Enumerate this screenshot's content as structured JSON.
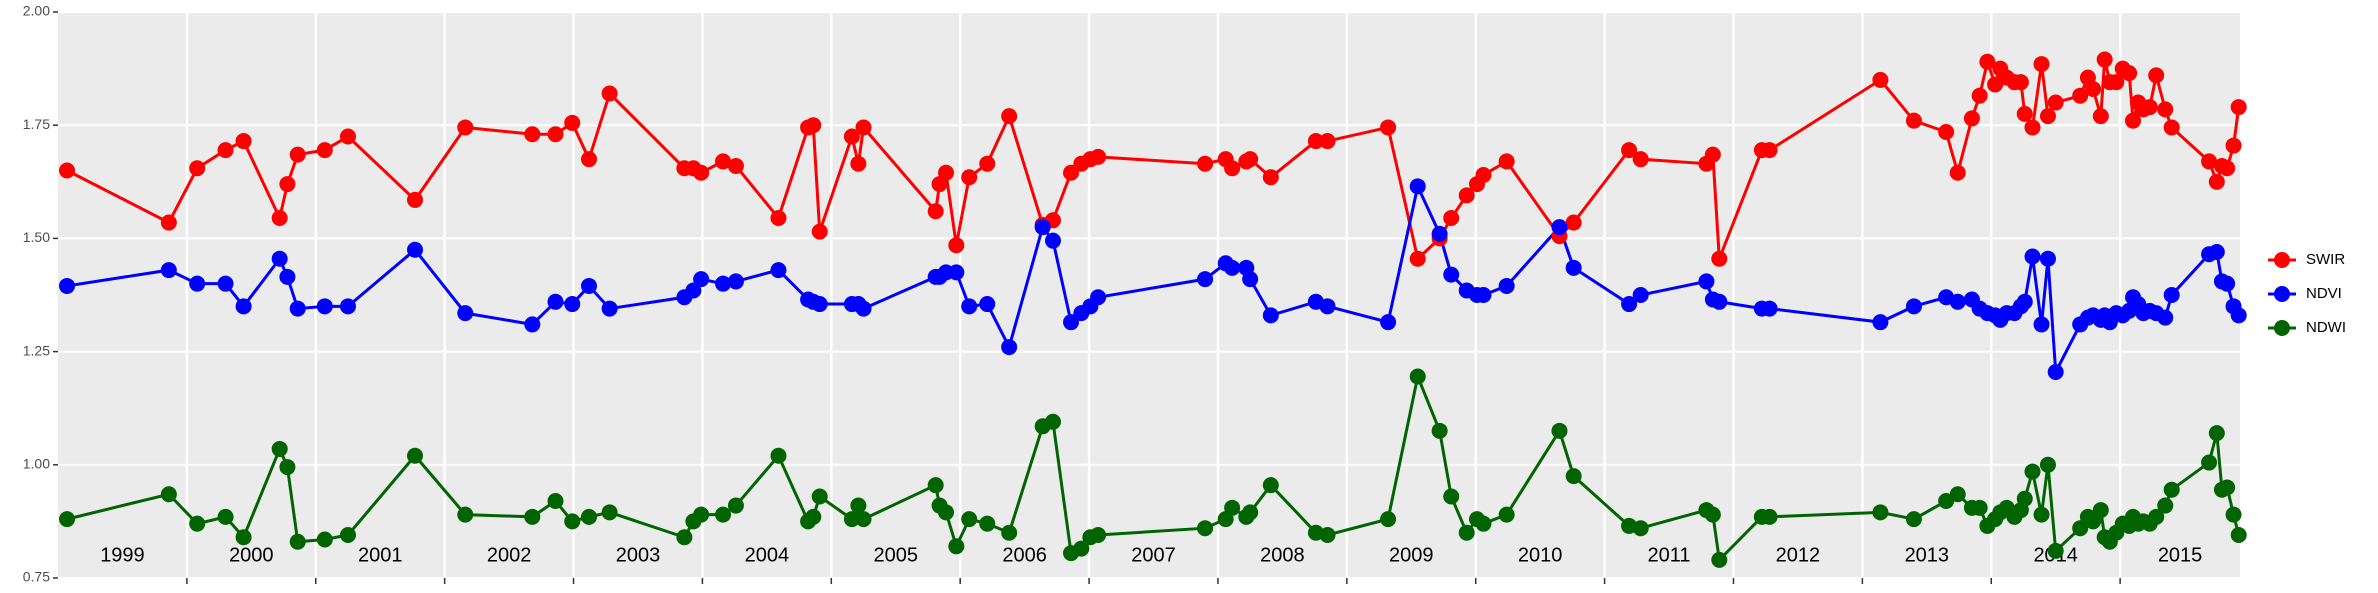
{
  "chart_data": {
    "type": "line",
    "x": [
      1999.07,
      1999.86,
      2000.08,
      2000.3,
      2000.44,
      2000.72,
      2000.78,
      2000.86,
      2001.07,
      2001.25,
      2001.77,
      2002.16,
      2002.68,
      2002.86,
      2002.99,
      2003.12,
      2003.28,
      2003.86,
      2003.93,
      2003.99,
      2004.16,
      2004.26,
      2004.59,
      2004.82,
      2004.86,
      2004.91,
      2005.16,
      2005.21,
      2005.25,
      2005.81,
      2005.84,
      2005.89,
      2005.97,
      2006.07,
      2006.21,
      2006.38,
      2006.64,
      2006.72,
      2006.86,
      2006.94,
      2007.01,
      2007.07,
      2007.9,
      2008.06,
      2008.11,
      2008.22,
      2008.25,
      2008.41,
      2008.76,
      2008.85,
      2009.32,
      2009.55,
      2009.72,
      2009.81,
      2009.93,
      2010.01,
      2010.06,
      2010.24,
      2010.65,
      2010.76,
      2011.19,
      2011.28,
      2011.79,
      2011.84,
      2011.89,
      2012.22,
      2012.28,
      2013.14,
      2013.4,
      2013.65,
      2013.74,
      2013.85,
      2013.91,
      2013.97,
      2014.03,
      2014.07,
      2014.12,
      2014.18,
      2014.23,
      2014.26,
      2014.32,
      2014.39,
      2014.44,
      2014.5,
      2014.69,
      2014.75,
      2014.79,
      2014.85,
      2014.88,
      2014.92,
      2014.97,
      2015.02,
      2015.07,
      2015.1,
      2015.14,
      2015.18,
      2015.23,
      2015.28,
      2015.35,
      2015.4,
      2015.69,
      2015.75,
      2015.79,
      2015.83,
      2015.88,
      2015.92
    ],
    "series": [
      {
        "name": "SWIR",
        "color": "#ff0000",
        "values": [
          1.65,
          1.535,
          1.655,
          1.695,
          1.715,
          1.545,
          1.62,
          1.685,
          1.695,
          1.725,
          1.585,
          1.745,
          1.73,
          1.73,
          1.755,
          1.675,
          1.82,
          1.655,
          1.655,
          1.645,
          1.67,
          1.66,
          1.545,
          1.745,
          1.75,
          1.515,
          1.725,
          1.665,
          1.745,
          1.56,
          1.62,
          1.645,
          1.485,
          1.635,
          1.665,
          1.77,
          1.53,
          1.54,
          1.645,
          1.665,
          1.675,
          1.68,
          1.665,
          1.675,
          1.655,
          1.67,
          1.675,
          1.635,
          1.715,
          1.715,
          1.745,
          1.455,
          1.5,
          1.545,
          1.595,
          1.62,
          1.64,
          1.67,
          1.505,
          1.535,
          1.695,
          1.675,
          1.665,
          1.685,
          1.455,
          1.695,
          1.695,
          1.85,
          1.76,
          1.735,
          1.645,
          1.765,
          1.815,
          1.89,
          1.84,
          1.875,
          1.855,
          1.845,
          1.845,
          1.775,
          1.745,
          1.885,
          1.77,
          1.8,
          1.815,
          1.855,
          1.83,
          1.77,
          1.895,
          1.845,
          1.845,
          1.875,
          1.865,
          1.76,
          1.8,
          1.785,
          1.79,
          1.86,
          1.785,
          1.745,
          1.67,
          1.625,
          1.66,
          1.655,
          1.705,
          1.79
        ]
      },
      {
        "name": "NDVI",
        "color": "#0000ff",
        "values": [
          1.395,
          1.43,
          1.4,
          1.4,
          1.35,
          1.455,
          1.415,
          1.345,
          1.35,
          1.35,
          1.475,
          1.335,
          1.31,
          1.36,
          1.355,
          1.395,
          1.345,
          1.37,
          1.385,
          1.41,
          1.4,
          1.405,
          1.43,
          1.365,
          1.36,
          1.355,
          1.355,
          1.355,
          1.345,
          1.415,
          1.415,
          1.425,
          1.425,
          1.35,
          1.355,
          1.26,
          1.525,
          1.495,
          1.315,
          1.335,
          1.35,
          1.37,
          1.41,
          1.445,
          1.435,
          1.435,
          1.41,
          1.33,
          1.36,
          1.35,
          1.315,
          1.615,
          1.51,
          1.42,
          1.385,
          1.375,
          1.375,
          1.395,
          1.525,
          1.435,
          1.355,
          1.375,
          1.405,
          1.365,
          1.36,
          1.345,
          1.345,
          1.315,
          1.35,
          1.37,
          1.36,
          1.365,
          1.345,
          1.335,
          1.33,
          1.32,
          1.335,
          1.335,
          1.35,
          1.36,
          1.46,
          1.31,
          1.455,
          1.205,
          1.31,
          1.325,
          1.33,
          1.32,
          1.33,
          1.315,
          1.335,
          1.33,
          1.34,
          1.37,
          1.355,
          1.335,
          1.34,
          1.335,
          1.325,
          1.375,
          1.465,
          1.47,
          1.405,
          1.4,
          1.35,
          1.33
        ]
      },
      {
        "name": "NDWI",
        "color": "#006400",
        "values": [
          0.88,
          0.935,
          0.87,
          0.885,
          0.84,
          1.035,
          0.995,
          0.83,
          0.835,
          0.845,
          1.02,
          0.89,
          0.885,
          0.92,
          0.875,
          0.885,
          0.895,
          0.84,
          0.875,
          0.89,
          0.89,
          0.91,
          1.02,
          0.875,
          0.885,
          0.93,
          0.88,
          0.91,
          0.88,
          0.955,
          0.91,
          0.895,
          0.82,
          0.88,
          0.87,
          0.85,
          1.085,
          1.095,
          0.805,
          0.815,
          0.84,
          0.845,
          0.86,
          0.88,
          0.905,
          0.885,
          0.895,
          0.955,
          0.85,
          0.845,
          0.88,
          1.195,
          1.075,
          0.93,
          0.85,
          0.88,
          0.87,
          0.89,
          1.075,
          0.975,
          0.865,
          0.86,
          0.9,
          0.89,
          0.79,
          0.885,
          0.885,
          0.895,
          0.88,
          0.92,
          0.935,
          0.905,
          0.905,
          0.865,
          0.88,
          0.895,
          0.905,
          0.885,
          0.9,
          0.925,
          0.985,
          0.89,
          1.0,
          0.81,
          0.86,
          0.885,
          0.875,
          0.9,
          0.84,
          0.83,
          0.85,
          0.87,
          0.865,
          0.885,
          0.87,
          0.875,
          0.87,
          0.885,
          0.91,
          0.945,
          1.005,
          1.07,
          0.945,
          0.95,
          0.89,
          0.845
        ]
      }
    ],
    "xlim": [
      1999.0,
      2015.93
    ],
    "xgrid": [
      2000,
      2001,
      2002,
      2003,
      2004,
      2005,
      2006,
      2007,
      2008,
      2009,
      2010,
      2011,
      2012,
      2013,
      2014,
      2015
    ],
    "year_labels": [
      "1999",
      "2000",
      "2001",
      "2002",
      "2003",
      "2004",
      "2005",
      "2006",
      "2007",
      "2008",
      "2009",
      "2010",
      "2011",
      "2012",
      "2013",
      "2014",
      "2015"
    ],
    "ylim": [
      0.75,
      2.0
    ],
    "yticks": [
      {
        "value": 0.75,
        "label": "0.75"
      },
      {
        "value": 1,
        "label": "1.00"
      },
      {
        "value": 1.25,
        "label": "1.25"
      },
      {
        "value": 1.5,
        "label": "1.50"
      },
      {
        "value": 1.75,
        "label": "1.75"
      },
      {
        "value": 2,
        "label": "2.00"
      }
    ],
    "grid": true,
    "legend_position": "right"
  }
}
